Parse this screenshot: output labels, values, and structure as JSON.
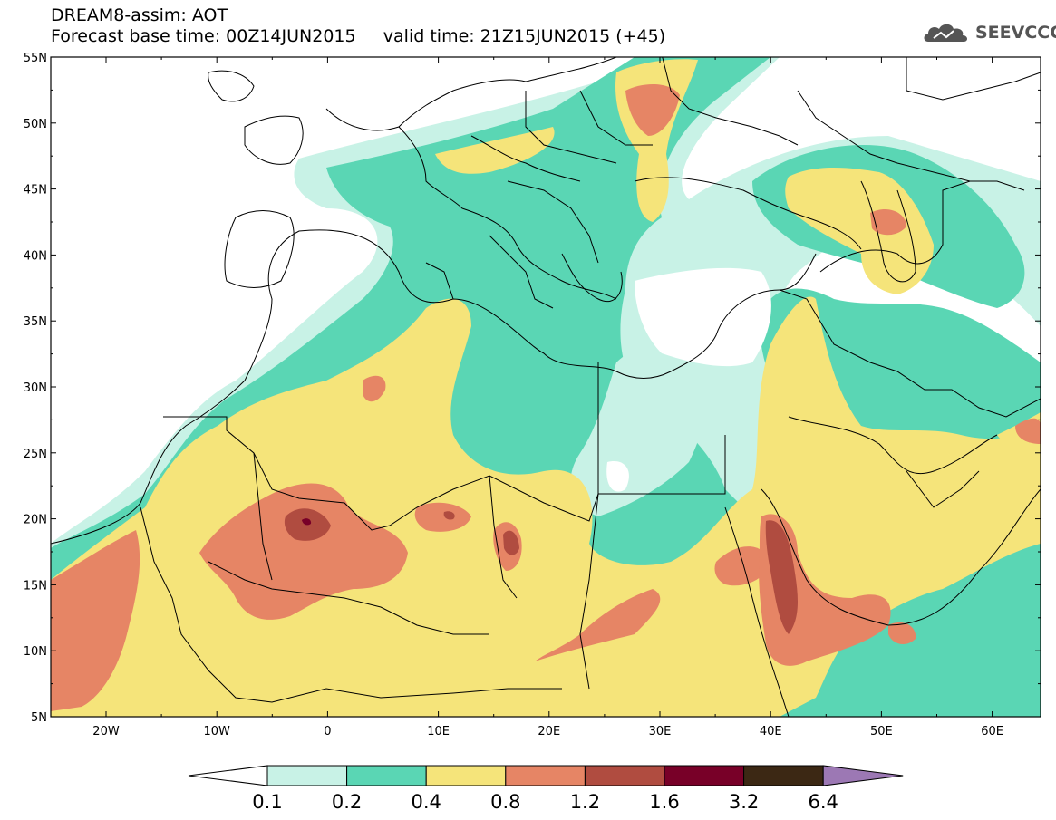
{
  "header": {
    "line1": "DREAM8-assim: AOT",
    "line2_base": "Forecast base time: 00Z14JUN2015",
    "line2_valid": "valid time: 21Z15JUN2015 (+45)"
  },
  "logo": {
    "text": "SEEVCCC",
    "icon": "cloud-icon",
    "color": "#555555"
  },
  "map": {
    "lat_labels": [
      "55N",
      "50N",
      "45N",
      "40N",
      "35N",
      "30N",
      "25N",
      "20N",
      "15N",
      "10N",
      "5N"
    ],
    "lon_labels": [
      "20W",
      "10W",
      "0",
      "10E",
      "20E",
      "30E",
      "40E",
      "50E",
      "60E"
    ]
  },
  "colorbar": {
    "labels": [
      "0.1",
      "0.2",
      "0.4",
      "0.8",
      "1.2",
      "1.6",
      "3.2",
      "6.4"
    ],
    "colors": [
      "#ffffff",
      "#c8f2e6",
      "#5ad6b4",
      "#f5e47a",
      "#e68565",
      "#b04c40",
      "#780028",
      "#3c2814",
      "#9c78b4"
    ]
  }
}
